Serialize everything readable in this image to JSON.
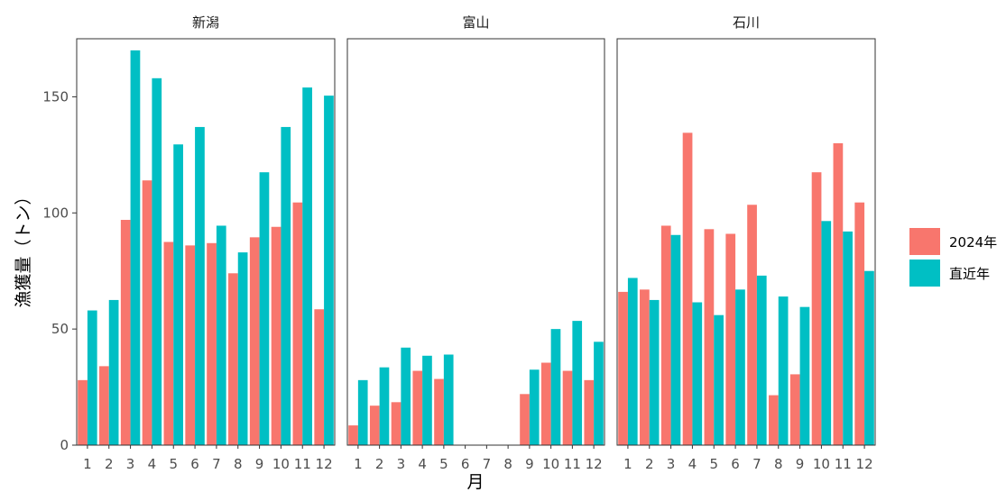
{
  "chart_data": {
    "type": "bar",
    "xlabel": "月",
    "ylabel": "漁獲量（トン）",
    "ylim": [
      0,
      175
    ],
    "yticks": [
      0,
      50,
      100,
      150
    ],
    "categories": [
      "1",
      "2",
      "3",
      "4",
      "5",
      "6",
      "7",
      "8",
      "9",
      "10",
      "11",
      "12"
    ],
    "legend_position": "right",
    "series": [
      {
        "name": "2024年",
        "color": "#F8766D"
      },
      {
        "name": "直近年",
        "color": "#00BFC4"
      }
    ],
    "panels": [
      {
        "title": "新潟",
        "values": {
          "2024年": [
            28,
            34,
            97,
            114,
            87.5,
            86,
            87,
            74,
            89.5,
            94,
            104.5,
            58.5
          ],
          "直近年": [
            58,
            62.5,
            170,
            158,
            129.5,
            137,
            94.5,
            83,
            117.5,
            137,
            154,
            150.5
          ]
        }
      },
      {
        "title": "富山",
        "values": {
          "2024年": [
            8.5,
            17,
            18.5,
            32,
            28.5,
            0,
            0,
            0,
            22,
            35.5,
            32,
            28
          ],
          "直近年": [
            28,
            33.5,
            42,
            38.5,
            39,
            0,
            0,
            0,
            32.5,
            50,
            53.5,
            44.5
          ]
        }
      },
      {
        "title": "石川",
        "values": {
          "2024年": [
            66,
            67,
            94.5,
            134.5,
            93,
            91,
            103.5,
            21.5,
            30.5,
            117.5,
            130,
            104.5
          ],
          "直近年": [
            72,
            62.5,
            90.5,
            61.5,
            56,
            67,
            73,
            64,
            59.5,
            96.5,
            92,
            75
          ]
        }
      }
    ]
  }
}
